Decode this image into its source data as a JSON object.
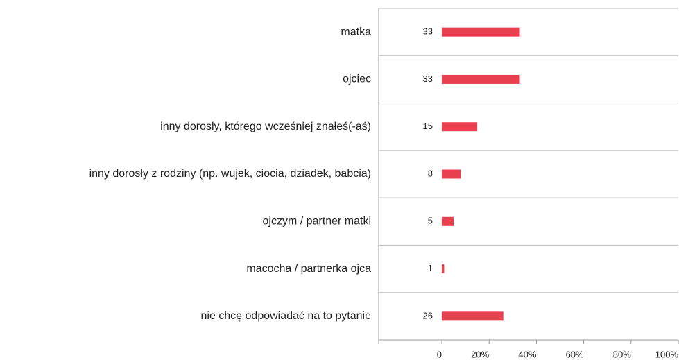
{
  "chart_data": {
    "type": "barh",
    "categories": [
      "matka",
      "ojciec",
      "inny dorosły, którego wcześniej znałeś(-aś)",
      "inny dorosły z rodziny (np. wujek, ciocia, dziadek, babcia)",
      "ojczym / partner matki",
      "macocha / partnerka ojca",
      "nie chcę odpowiadać na to pytanie"
    ],
    "values": [
      33,
      33,
      15,
      8,
      5,
      1,
      26
    ],
    "color": "#e8404e",
    "xlim": [
      0,
      100
    ],
    "xticks": [
      0,
      {
        "value": 20,
        "label": "20%"
      },
      {
        "value": 40,
        "label": "40%"
      },
      {
        "value": 60,
        "label": "60%"
      },
      {
        "value": 80,
        "label": "80%"
      },
      {
        "value": 100,
        "label": "100%"
      }
    ],
    "grid": true
  }
}
